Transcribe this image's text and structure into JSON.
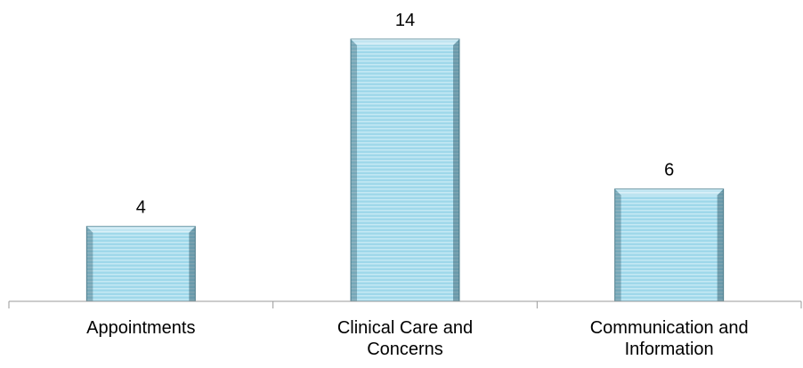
{
  "chart_data": {
    "type": "bar",
    "categories": [
      "Appointments",
      "Clinical Care and\nConcerns",
      "Communication and\nInformation"
    ],
    "values": [
      4,
      14,
      6
    ],
    "data_labels": [
      "4",
      "14",
      "6"
    ],
    "title": "",
    "xlabel": "",
    "ylabel": "",
    "ylim": [
      0,
      14
    ],
    "grid": false,
    "legend": "none",
    "colors": {
      "bar_fill": "#9fd8ea",
      "bar_stripe": "#c6e9f4",
      "bar_edge": "#5a8a99",
      "axis": "#9a9a9a"
    }
  }
}
